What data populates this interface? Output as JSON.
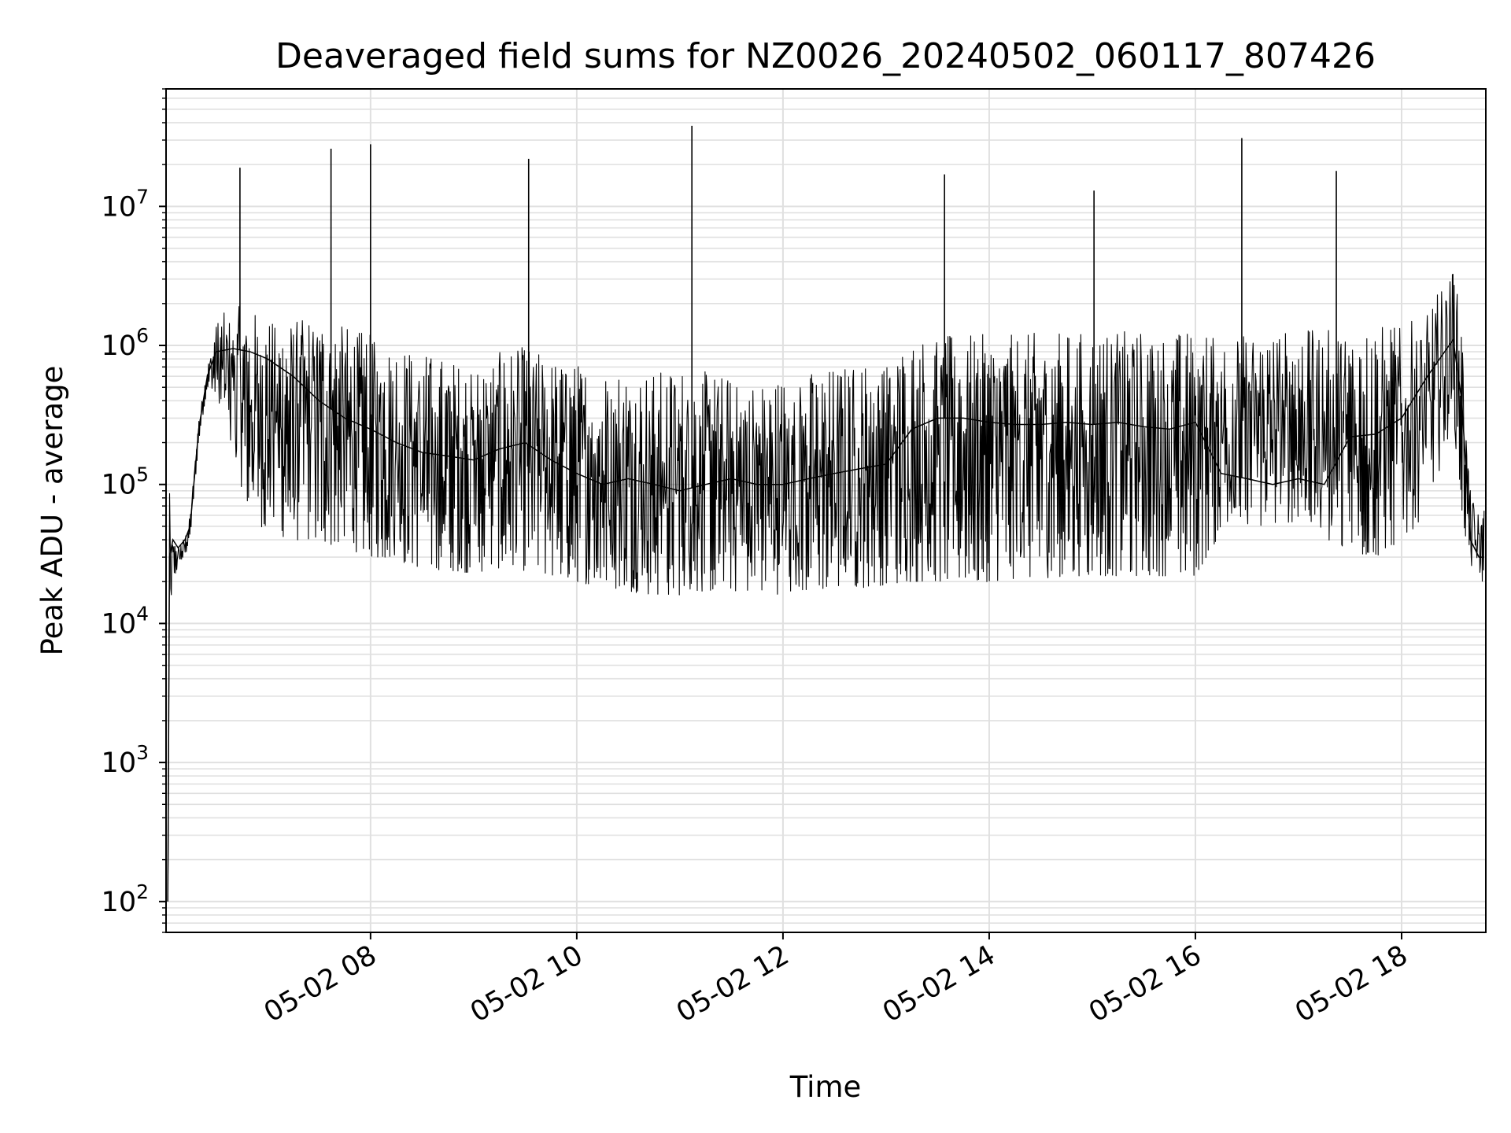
{
  "chart_data": {
    "type": "line",
    "title": "Deaveraged field sums for NZ0026_20240502_060117_807426",
    "xlabel": "Time",
    "ylabel": "Peak ADU - average",
    "xscale": "time",
    "yscale": "log",
    "xlim": [
      "2024-05-02 06:01",
      "2024-05-02 18:49"
    ],
    "ylim": [
      60,
      70000000
    ],
    "grid": true,
    "grid_minor_y": true,
    "legend": "none",
    "line_color": "#000000",
    "grid_color": "#e0e0e0",
    "x_ticks": [
      {
        "value": "2024-05-02 08:00",
        "label": "05-02 08"
      },
      {
        "value": "2024-05-02 10:00",
        "label": "05-02 10"
      },
      {
        "value": "2024-05-02 12:00",
        "label": "05-02 12"
      },
      {
        "value": "2024-05-02 14:00",
        "label": "05-02 14"
      },
      {
        "value": "2024-05-02 16:00",
        "label": "05-02 16"
      },
      {
        "value": "2024-05-02 18:00",
        "label": "05-02 18"
      }
    ],
    "y_ticks": [
      {
        "value": 100,
        "base": "10",
        "exp": "2"
      },
      {
        "value": 1000,
        "base": "10",
        "exp": "3"
      },
      {
        "value": 10000,
        "base": "10",
        "exp": "4"
      },
      {
        "value": 100000,
        "base": "10",
        "exp": "5"
      },
      {
        "value": 1000000,
        "base": "10",
        "exp": "6"
      },
      {
        "value": 10000000,
        "base": "10",
        "exp": "7"
      }
    ],
    "series": [
      {
        "x": [
          "06:02",
          "06:03",
          "06:05",
          "06:08",
          "06:12",
          "06:15",
          "06:20",
          "06:25",
          "06:30",
          "06:40",
          "06:50",
          "07:00",
          "07:15",
          "07:30",
          "07:45",
          "08:00",
          "08:15",
          "08:30",
          "08:45",
          "09:00",
          "09:15",
          "09:30",
          "09:45",
          "10:00",
          "10:15",
          "10:30",
          "10:45",
          "11:00",
          "11:15",
          "11:30",
          "11:45",
          "12:00",
          "12:15",
          "12:30",
          "12:45",
          "13:00",
          "13:15",
          "13:30",
          "13:45",
          "14:00",
          "14:15",
          "14:30",
          "14:45",
          "15:00",
          "15:15",
          "15:30",
          "15:45",
          "16:00",
          "16:15",
          "16:30",
          "16:45",
          "17:00",
          "17:15",
          "17:30",
          "17:45",
          "18:00",
          "18:15",
          "18:30",
          "18:35",
          "18:40",
          "18:45",
          "18:48"
        ],
        "y": [
          100,
          30000,
          40000,
          35000,
          40000,
          50000,
          250000,
          600000,
          900000,
          950000,
          900000,
          800000,
          600000,
          400000,
          300000,
          250000,
          200000,
          170000,
          160000,
          150000,
          180000,
          200000,
          150000,
          120000,
          100000,
          110000,
          100000,
          90000,
          100000,
          110000,
          100000,
          100000,
          110000,
          120000,
          130000,
          140000,
          250000,
          300000,
          300000,
          280000,
          270000,
          270000,
          280000,
          270000,
          280000,
          260000,
          250000,
          280000,
          120000,
          110000,
          100000,
          110000,
          100000,
          220000,
          230000,
          300000,
          600000,
          1100000,
          400000,
          40000,
          30000,
          30000
        ],
        "upper": [
          100,
          90000,
          40000,
          36000,
          42000,
          60000,
          300000,
          700000,
          1500000,
          2000000,
          1800000,
          1600000,
          1500000,
          1800000,
          1400000,
          1200000,
          1100000,
          900000,
          800000,
          700000,
          900000,
          1000000,
          800000,
          750000,
          700000,
          700000,
          650000,
          700000,
          650000,
          600000,
          550000,
          600000,
          650000,
          700000,
          750000,
          800000,
          1150000,
          1200000,
          1200000,
          1200000,
          1200000,
          1250000,
          1250000,
          1250000,
          1300000,
          1300000,
          1250000,
          1300000,
          1200000,
          1200000,
          1250000,
          1300000,
          1300000,
          1350000,
          1400000,
          1400000,
          1700000,
          4000000,
          1500000,
          90000,
          60000,
          70000
        ],
        "lower": [
          100,
          2200,
          20000,
          25000,
          30000,
          40000,
          200000,
          500000,
          400000,
          150000,
          60000,
          45000,
          40000,
          38000,
          35000,
          30000,
          28000,
          25000,
          24000,
          23000,
          25000,
          24000,
          22000,
          20000,
          18000,
          17000,
          16000,
          16000,
          17000,
          17000,
          17000,
          16000,
          17000,
          18000,
          18000,
          19000,
          20000,
          20000,
          20000,
          20000,
          21000,
          21000,
          22000,
          22000,
          22000,
          22000,
          22000,
          22000,
          45000,
          50000,
          50000,
          55000,
          40000,
          30000,
          30000,
          40000,
          60000,
          300000,
          60000,
          25000,
          20000,
          20000
        ],
        "spikes": [
          {
            "x": "06:44",
            "y": 19000000
          },
          {
            "x": "07:37",
            "y": 26000000
          },
          {
            "x": "08:00",
            "y": 28000000
          },
          {
            "x": "09:32",
            "y": 22000000
          },
          {
            "x": "11:07",
            "y": 38000000
          },
          {
            "x": "13:34",
            "y": 17000000
          },
          {
            "x": "15:01",
            "y": 13000000
          },
          {
            "x": "16:27",
            "y": 31000000
          },
          {
            "x": "17:22",
            "y": 18000000
          }
        ]
      }
    ]
  }
}
